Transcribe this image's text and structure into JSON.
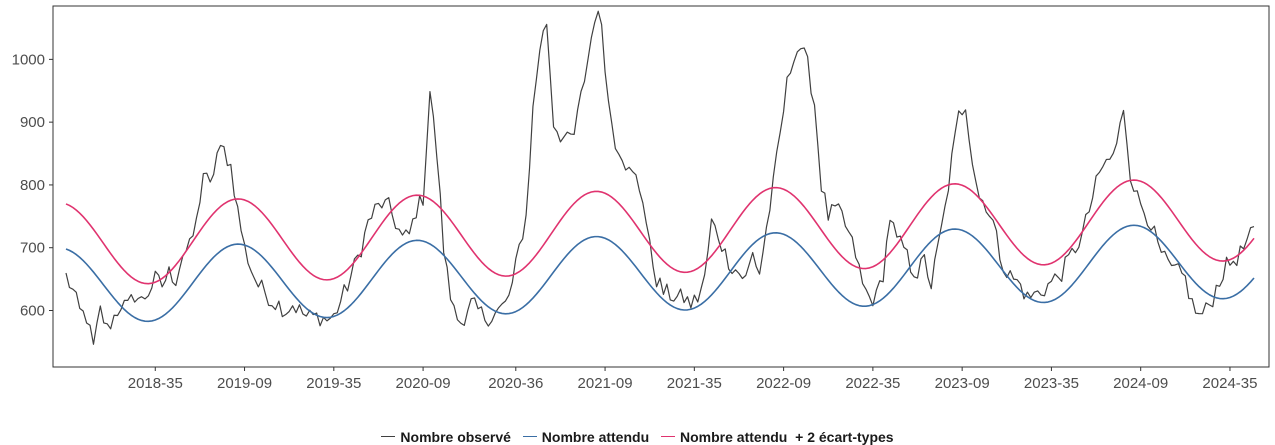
{
  "chart_data": {
    "type": "line",
    "title": "",
    "xlabel": "",
    "ylabel": "",
    "ylim": [
      510,
      1085
    ],
    "yticks": [
      600,
      700,
      800,
      900,
      1000
    ],
    "xtick_labels": [
      "2018-35",
      "2019-09",
      "2019-35",
      "2020-09",
      "2020-36",
      "2021-09",
      "2021-35",
      "2022-09",
      "2022-35",
      "2023-09",
      "2023-35",
      "2024-09",
      "2024-35"
    ],
    "xtick_index": [
      26,
      52,
      78,
      104,
      131,
      157,
      183,
      209,
      235,
      261,
      287,
      313,
      339
    ],
    "n_weeks": 347,
    "grid": false,
    "legend_position": "bottom",
    "observed_anchors": [
      [
        0,
        655
      ],
      [
        2,
        630
      ],
      [
        4,
        598
      ],
      [
        6,
        590
      ],
      [
        8,
        540
      ],
      [
        10,
        600
      ],
      [
        12,
        570
      ],
      [
        14,
        590
      ],
      [
        16,
        610
      ],
      [
        18,
        605
      ],
      [
        20,
        625
      ],
      [
        22,
        615
      ],
      [
        24,
        630
      ],
      [
        26,
        650
      ],
      [
        28,
        640
      ],
      [
        30,
        660
      ],
      [
        32,
        650
      ],
      [
        34,
        690
      ],
      [
        36,
        700
      ],
      [
        38,
        740
      ],
      [
        40,
        820
      ],
      [
        42,
        795
      ],
      [
        44,
        850
      ],
      [
        46,
        855
      ],
      [
        48,
        830
      ],
      [
        50,
        760
      ],
      [
        52,
        700
      ],
      [
        54,
        665
      ],
      [
        56,
        640
      ],
      [
        58,
        630
      ],
      [
        60,
        615
      ],
      [
        62,
        610
      ],
      [
        64,
        600
      ],
      [
        66,
        610
      ],
      [
        68,
        600
      ],
      [
        70,
        590
      ],
      [
        72,
        590
      ],
      [
        74,
        590
      ],
      [
        76,
        585
      ],
      [
        78,
        590
      ],
      [
        80,
        615
      ],
      [
        82,
        640
      ],
      [
        84,
        670
      ],
      [
        86,
        700
      ],
      [
        88,
        740
      ],
      [
        90,
        760
      ],
      [
        92,
        770
      ],
      [
        94,
        765
      ],
      [
        96,
        740
      ],
      [
        98,
        715
      ],
      [
        100,
        720
      ],
      [
        102,
        760
      ],
      [
        104,
        780
      ],
      [
        106,
        950
      ],
      [
        108,
        850
      ],
      [
        110,
        700
      ],
      [
        112,
        620
      ],
      [
        114,
        600
      ],
      [
        116,
        570
      ],
      [
        118,
        610
      ],
      [
        120,
        600
      ],
      [
        122,
        590
      ],
      [
        124,
        590
      ],
      [
        126,
        600
      ],
      [
        128,
        610
      ],
      [
        130,
        640
      ],
      [
        132,
        700
      ],
      [
        134,
        750
      ],
      [
        136,
        920
      ],
      [
        138,
        1020
      ],
      [
        140,
        1060
      ],
      [
        142,
        900
      ],
      [
        144,
        880
      ],
      [
        146,
        870
      ],
      [
        148,
        880
      ],
      [
        150,
        940
      ],
      [
        152,
        1000
      ],
      [
        154,
        1070
      ],
      [
        156,
        1060
      ],
      [
        158,
        930
      ],
      [
        160,
        870
      ],
      [
        162,
        850
      ],
      [
        164,
        820
      ],
      [
        166,
        810
      ],
      [
        168,
        780
      ],
      [
        170,
        700
      ],
      [
        172,
        650
      ],
      [
        174,
        630
      ],
      [
        176,
        625
      ],
      [
        178,
        620
      ],
      [
        180,
        620
      ],
      [
        182,
        610
      ],
      [
        184,
        620
      ],
      [
        186,
        650
      ],
      [
        188,
        740
      ],
      [
        190,
        720
      ],
      [
        192,
        690
      ],
      [
        194,
        670
      ],
      [
        196,
        660
      ],
      [
        198,
        650
      ],
      [
        200,
        690
      ],
      [
        202,
        660
      ],
      [
        204,
        730
      ],
      [
        206,
        800
      ],
      [
        208,
        880
      ],
      [
        210,
        960
      ],
      [
        212,
        1010
      ],
      [
        214,
        1020
      ],
      [
        216,
        990
      ],
      [
        218,
        930
      ],
      [
        220,
        800
      ],
      [
        222,
        750
      ],
      [
        224,
        760
      ],
      [
        226,
        750
      ],
      [
        228,
        720
      ],
      [
        230,
        690
      ],
      [
        232,
        640
      ],
      [
        234,
        620
      ],
      [
        236,
        620
      ],
      [
        238,
        660
      ],
      [
        240,
        750
      ],
      [
        242,
        710
      ],
      [
        244,
        700
      ],
      [
        246,
        670
      ],
      [
        248,
        660
      ],
      [
        250,
        680
      ],
      [
        252,
        640
      ],
      [
        254,
        700
      ],
      [
        256,
        760
      ],
      [
        258,
        840
      ],
      [
        260,
        910
      ],
      [
        262,
        930
      ],
      [
        264,
        840
      ],
      [
        266,
        780
      ],
      [
        268,
        770
      ],
      [
        270,
        740
      ],
      [
        272,
        690
      ],
      [
        274,
        660
      ],
      [
        276,
        650
      ],
      [
        278,
        640
      ],
      [
        280,
        620
      ],
      [
        282,
        625
      ],
      [
        284,
        630
      ],
      [
        286,
        640
      ],
      [
        288,
        650
      ],
      [
        290,
        660
      ],
      [
        292,
        680
      ],
      [
        294,
        700
      ],
      [
        296,
        720
      ],
      [
        298,
        760
      ],
      [
        300,
        800
      ],
      [
        302,
        830
      ],
      [
        304,
        840
      ],
      [
        306,
        860
      ],
      [
        308,
        925
      ],
      [
        310,
        820
      ],
      [
        312,
        780
      ],
      [
        314,
        760
      ],
      [
        316,
        740
      ],
      [
        318,
        700
      ],
      [
        320,
        680
      ],
      [
        322,
        665
      ],
      [
        324,
        660
      ],
      [
        326,
        650
      ],
      [
        328,
        610
      ],
      [
        330,
        590
      ],
      [
        332,
        600
      ],
      [
        334,
        620
      ],
      [
        336,
        650
      ],
      [
        338,
        670
      ],
      [
        340,
        680
      ],
      [
        342,
        690
      ],
      [
        344,
        710
      ],
      [
        346,
        725
      ]
    ],
    "series": [
      {
        "name": "Nombre observé",
        "color": "#404040",
        "values": "observed_anchors"
      },
      {
        "name": "Nombre attendu",
        "color": "#3a6ea5",
        "model": {
          "mean_start": 640,
          "mean_slope_per_week": 0.115,
          "amplitude": 60,
          "peak_week": 50,
          "period_weeks": 52.18
        }
      },
      {
        "name": "Nombre attendu  + 2 écart-types",
        "color": "#e0336f",
        "model": {
          "mean_start": 706,
          "mean_slope_per_week": 0.115,
          "amplitude": 66,
          "peak_week": 50,
          "period_weeks": 52.18
        }
      }
    ]
  },
  "legend": {
    "items": [
      {
        "label": "Nombre observé",
        "color": "#404040"
      },
      {
        "label": "Nombre attendu",
        "color": "#3a6ea5"
      },
      {
        "label": "Nombre attendu  + 2 écart-types",
        "color": "#e0336f"
      }
    ]
  }
}
